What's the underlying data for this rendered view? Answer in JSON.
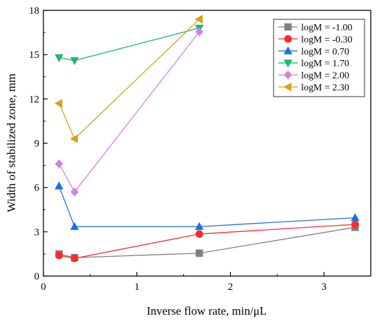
{
  "chart_data": {
    "type": "line",
    "title": "",
    "xlabel": "Inverse flow rate, min/μL",
    "ylabel": "Width of stabilized zone, mm",
    "xlim": [
      0,
      3.5
    ],
    "ylim": [
      0,
      18
    ],
    "x_ticks": [
      0,
      1,
      2,
      3
    ],
    "y_ticks": [
      0,
      3,
      6,
      9,
      12,
      15,
      18
    ],
    "grid": false,
    "legend_position": "top-right",
    "series": [
      {
        "name": "logM = -1.00",
        "color": "#808080",
        "marker": "square",
        "x": [
          0.167,
          0.333,
          1.667,
          3.333
        ],
        "y": [
          1.5,
          1.25,
          1.55,
          3.3
        ]
      },
      {
        "name": "logM = -0.30",
        "color": "#ff2a2a",
        "marker": "circle",
        "x": [
          0.167,
          0.333,
          1.667,
          3.333
        ],
        "y": [
          1.4,
          1.2,
          2.85,
          3.5
        ]
      },
      {
        "name": "logM = 0.70",
        "color": "#1a6fe8",
        "marker": "triangle-up",
        "x": [
          0.167,
          0.333,
          1.667,
          3.333
        ],
        "y": [
          6.1,
          3.35,
          3.35,
          3.95
        ]
      },
      {
        "name": "logM = 1.70",
        "color": "#1fb86b",
        "marker": "triangle-down",
        "x": [
          0.167,
          0.333,
          1.667
        ],
        "y": [
          14.8,
          14.6,
          16.8
        ]
      },
      {
        "name": "logM = 2.00",
        "color": "#d47ff0",
        "marker": "diamond",
        "x": [
          0.167,
          0.333,
          1.667
        ],
        "y": [
          7.6,
          5.7,
          16.55
        ]
      },
      {
        "name": "logM = 2.30",
        "color": "#d9a011",
        "marker": "triangle-left",
        "x": [
          0.167,
          0.333,
          1.667
        ],
        "y": [
          11.7,
          9.3,
          17.4
        ]
      }
    ]
  }
}
